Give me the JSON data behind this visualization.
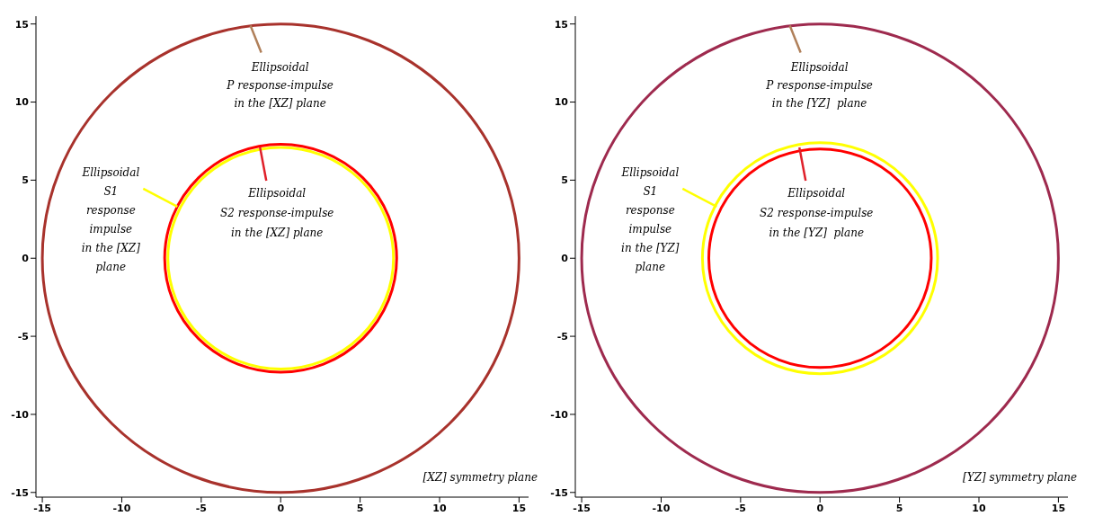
{
  "chart_data": [
    {
      "type": "line",
      "xlim": [
        -15.4,
        15.6
      ],
      "ylim": [
        -15.3,
        15.5
      ],
      "xticks": [
        -15,
        -10,
        -5,
        0,
        5,
        10,
        15
      ],
      "yticks": [
        -15,
        -10,
        -5,
        0,
        5,
        10,
        15
      ],
      "annotations": [
        "Ellipsoidal\nP response-impulse\nin the [XZ] plane",
        "Ellipsoidal\nS1\nresponse\nimpulse\nin the [XZ]\nplane",
        "Ellipsoidal\nS2 response-impulse\nin the [XZ] plane",
        "[XZ] symmetry plane"
      ]
    },
    {
      "type": "line",
      "xlim": [
        -15.4,
        15.6
      ],
      "ylim": [
        -15.3,
        15.5
      ],
      "xticks": [
        -15,
        -10,
        -5,
        0,
        5,
        10,
        15
      ],
      "yticks": [
        -15,
        -10,
        -5,
        0,
        5,
        10,
        15
      ],
      "annotations": [
        "Ellipsoidal\nP response-impulse\nin the [YZ]  plane",
        "Ellipsoidal\nS1\nresponse\nimpulse\nin the [YZ]\nplane",
        "Ellipsoidal\nS2 response-impulse\nin the [YZ]  plane",
        "[YZ] symmetry plane"
      ]
    }
  ]
}
